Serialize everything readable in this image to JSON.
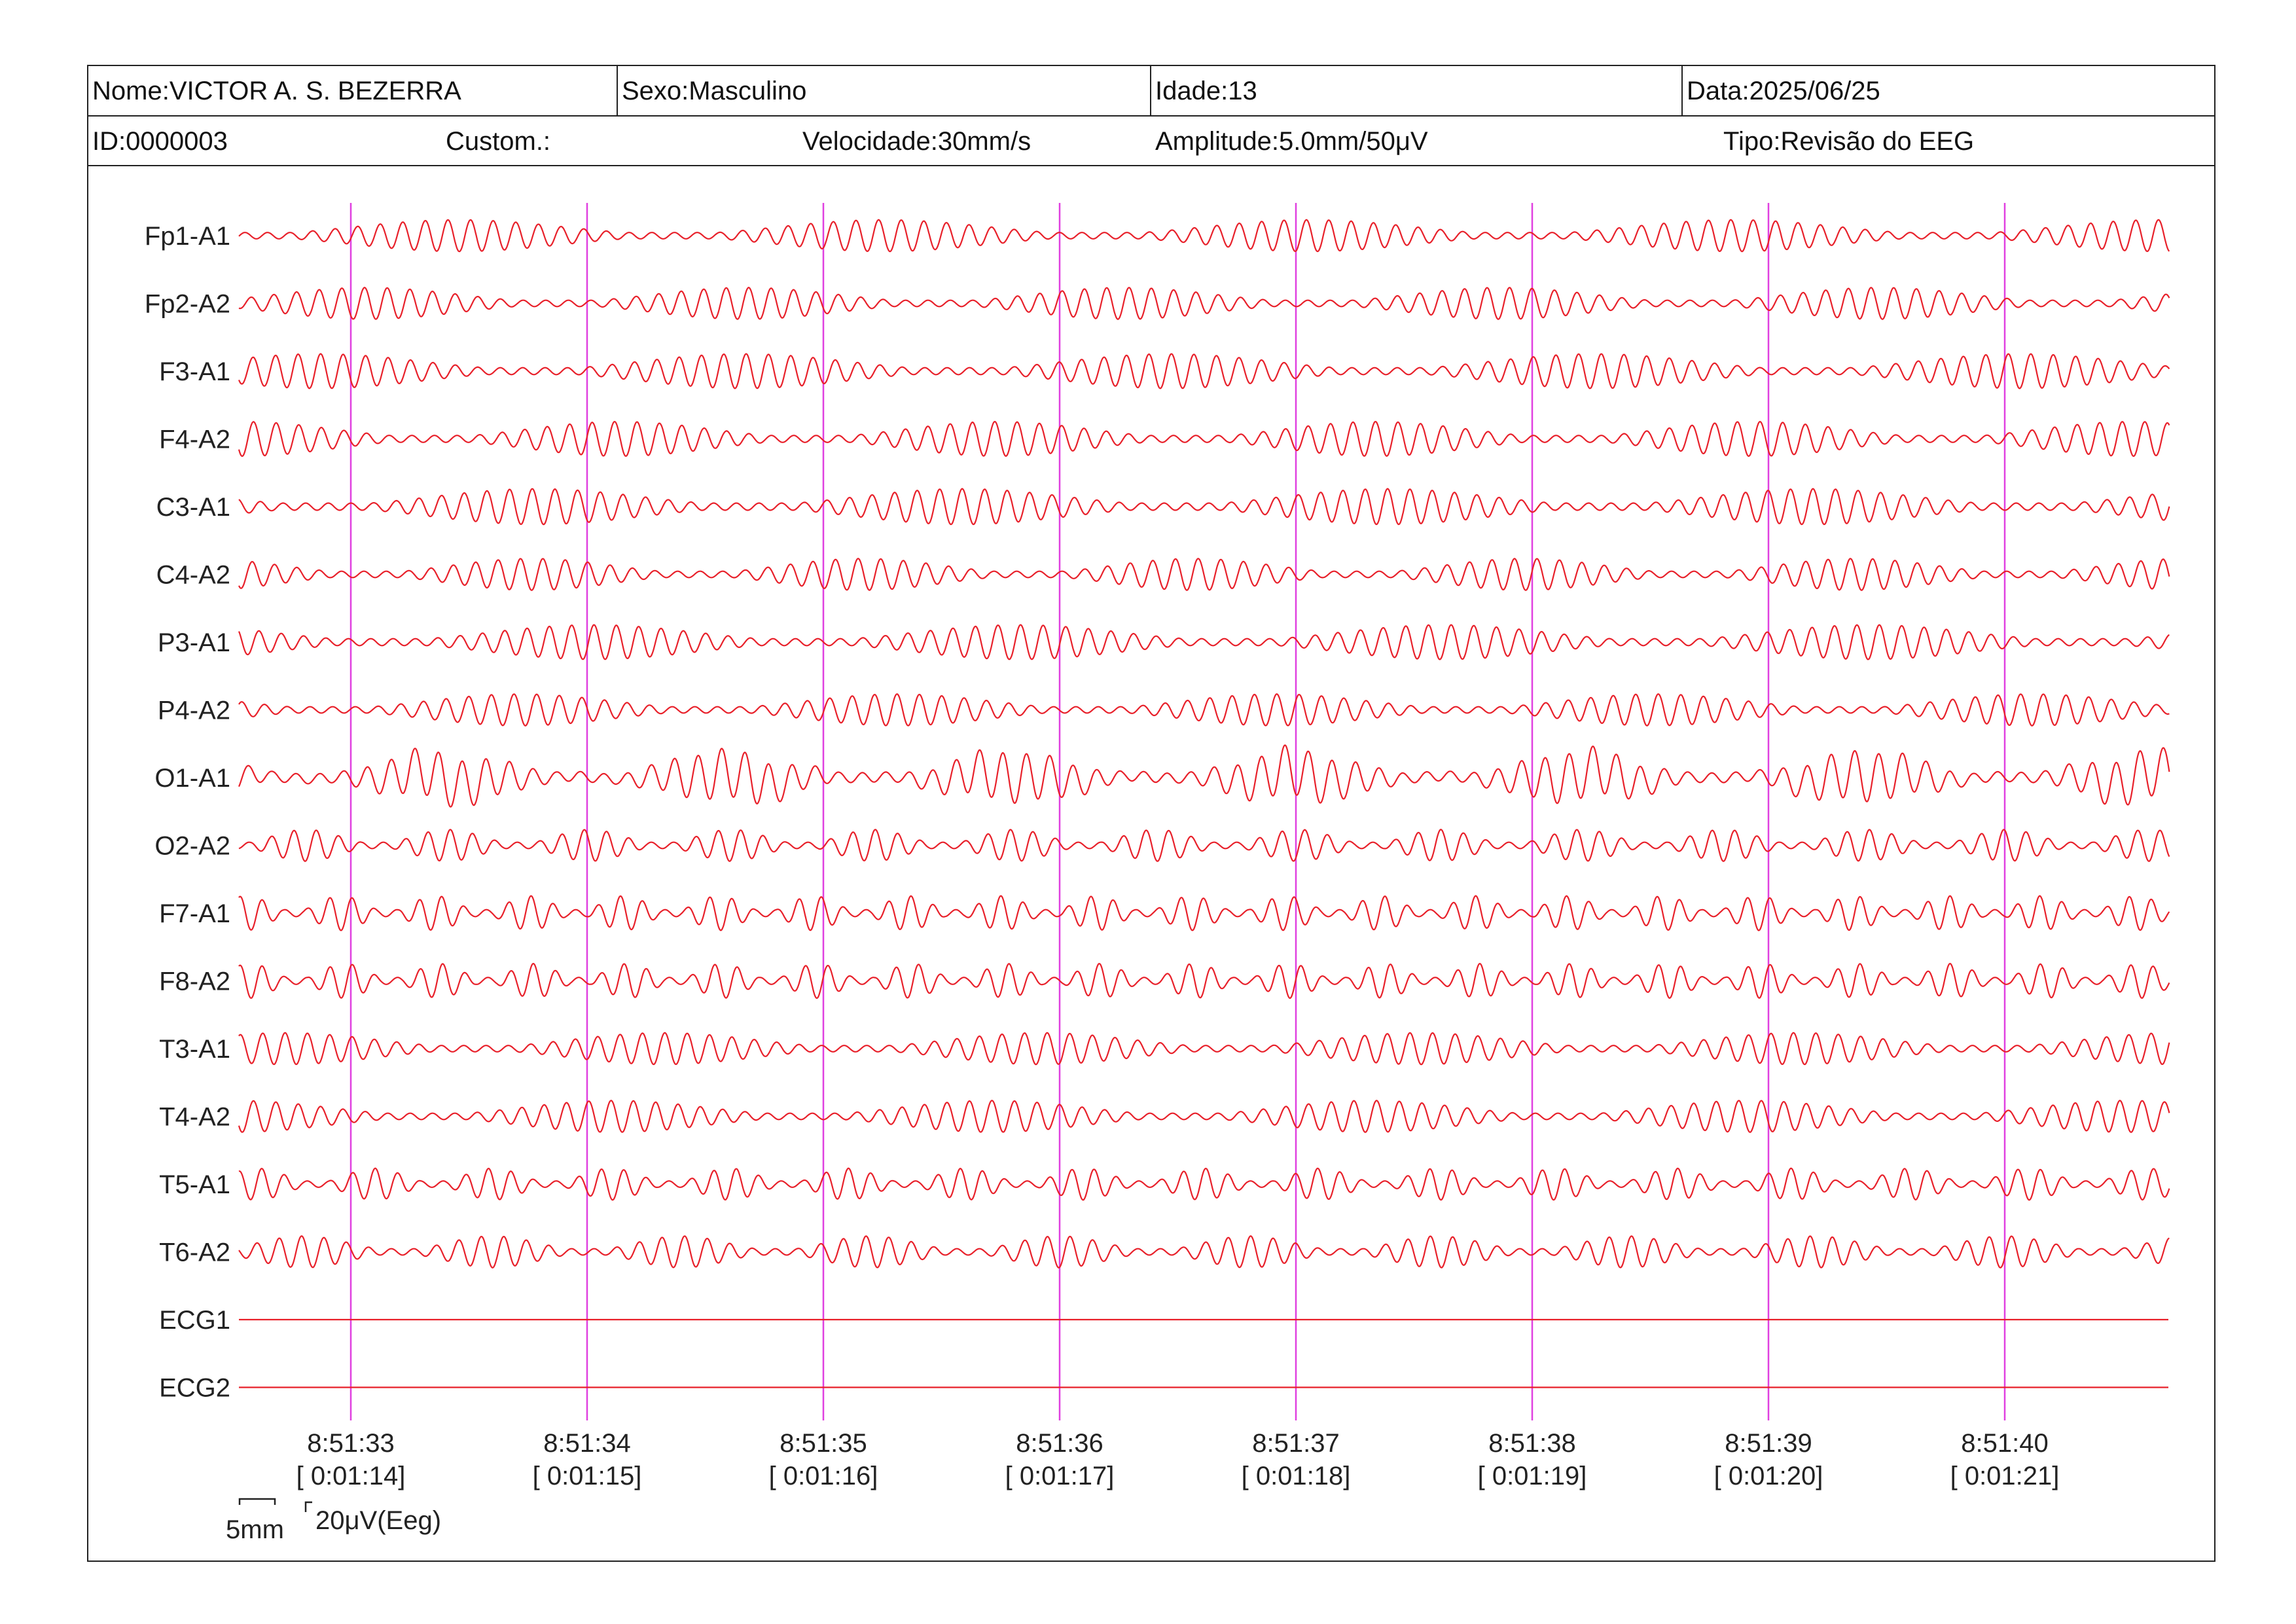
{
  "header": {
    "name": "Nome:VICTOR A. S. BEZERRA",
    "sex": "Sexo:Masculino",
    "age": "Idade:13",
    "date": "Data:2025/06/25",
    "id": "ID:0000003",
    "custom": "Custom.:",
    "speed": "Velocidade:30mm/s",
    "amplitude": "Amplitude:5.0mm/50μV",
    "type": "Tipo:Revisão do EEG"
  },
  "scale": {
    "time_label": "5mm",
    "amp_label": "20μV(Eeg)"
  },
  "colors": {
    "trace": "#e8202a",
    "marker": "#e040e0",
    "border": "#222222"
  },
  "chart_data": {
    "type": "line",
    "x_unit": "seconds",
    "x_range": [
      -0.48,
      7.69
    ],
    "channels": [
      {
        "name": "Fp1-A1",
        "amp": 0.55,
        "freq": 10.5,
        "mod": 1.8
      },
      {
        "name": "Fp2-A2",
        "amp": 0.55,
        "freq": 10.5,
        "mod": 1.6
      },
      {
        "name": "F3-A1",
        "amp": 0.6,
        "freq": 10.5,
        "mod": 1.8
      },
      {
        "name": "F4-A2",
        "amp": 0.6,
        "freq": 10.5,
        "mod": 1.6
      },
      {
        "name": "C3-A1",
        "amp": 0.62,
        "freq": 10.5,
        "mod": 1.8
      },
      {
        "name": "C4-A2",
        "amp": 0.55,
        "freq": 10.5,
        "mod": 1.4
      },
      {
        "name": "P3-A1",
        "amp": 0.6,
        "freq": 10.5,
        "mod": 1.8
      },
      {
        "name": "P4-A2",
        "amp": 0.55,
        "freq": 10.5,
        "mod": 1.6
      },
      {
        "name": "O1-A1",
        "amp": 0.85,
        "freq": 10.0,
        "mod": 1.2
      },
      {
        "name": "O2-A2",
        "amp": 0.55,
        "freq": 10.5,
        "mod": 0.6
      },
      {
        "name": "F7-A1",
        "amp": 0.6,
        "freq": 10.5,
        "mod": 0.4
      },
      {
        "name": "F8-A2",
        "amp": 0.6,
        "freq": 10.5,
        "mod": 0.4
      },
      {
        "name": "T3-A1",
        "amp": 0.55,
        "freq": 10.5,
        "mod": 1.6
      },
      {
        "name": "T4-A2",
        "amp": 0.55,
        "freq": 10.5,
        "mod": 1.6
      },
      {
        "name": "T5-A1",
        "amp": 0.55,
        "freq": 10.5,
        "mod": 0.5
      },
      {
        "name": "T6-A2",
        "amp": 0.55,
        "freq": 10.5,
        "mod": 0.8
      },
      {
        "name": "ECG1",
        "amp": 0,
        "freq": 0,
        "mod": 0
      },
      {
        "name": "ECG2",
        "amp": 0,
        "freq": 0,
        "mod": 0
      }
    ],
    "time_markers": [
      {
        "time": "8:51:33",
        "elapsed": "[ 0:01:14]"
      },
      {
        "time": "8:51:34",
        "elapsed": "[ 0:01:15]"
      },
      {
        "time": "8:51:35",
        "elapsed": "[ 0:01:16]"
      },
      {
        "time": "8:51:36",
        "elapsed": "[ 0:01:17]"
      },
      {
        "time": "8:51:37",
        "elapsed": "[ 0:01:18]"
      },
      {
        "time": "8:51:38",
        "elapsed": "[ 0:01:19]"
      },
      {
        "time": "8:51:39",
        "elapsed": "[ 0:01:20]"
      },
      {
        "time": "8:51:40",
        "elapsed": "[ 0:01:21]"
      }
    ]
  }
}
